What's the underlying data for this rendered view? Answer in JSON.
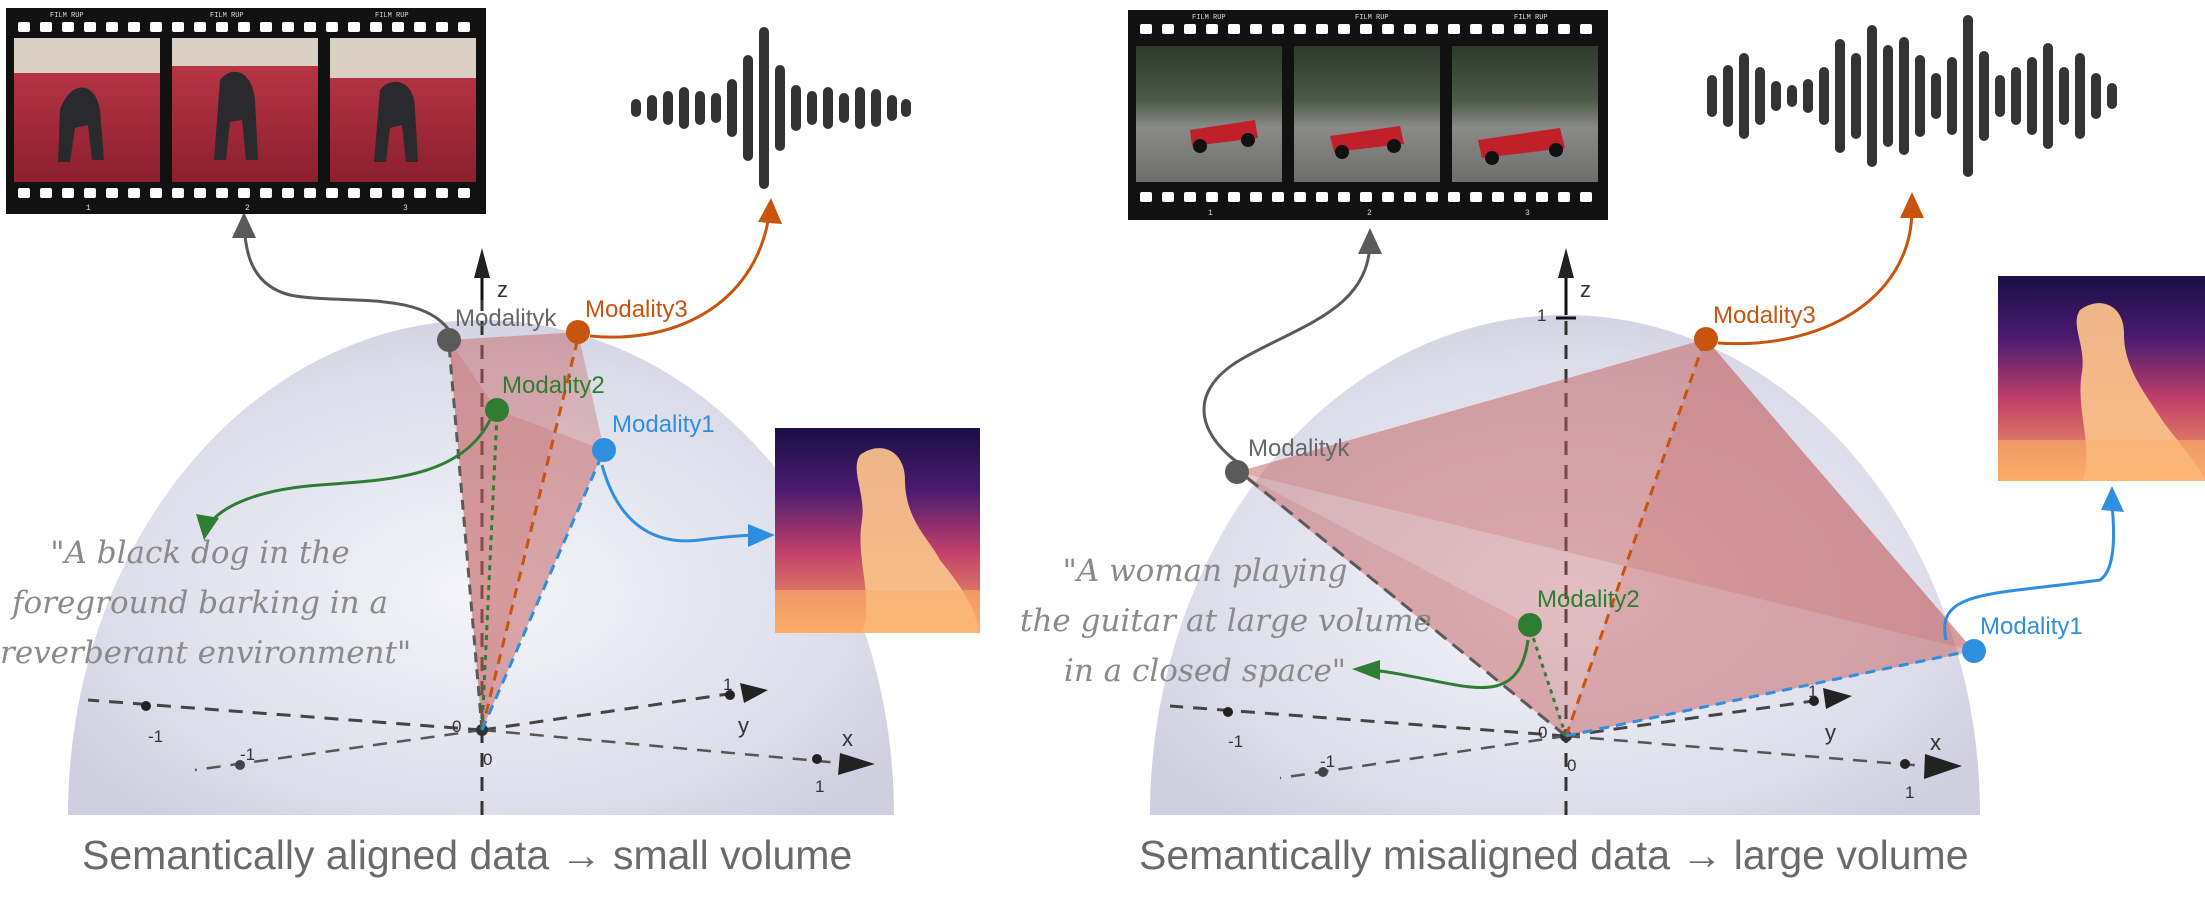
{
  "captions": {
    "left": "Semantically aligned data → small volume",
    "right": "Semantically misaligned data → large volume"
  },
  "panels": {
    "left": {
      "quote_lines": [
        "\"A black dog in the",
        "foreground barking in a",
        "reverberant environment\""
      ],
      "modality_labels": {
        "k": "Modalityk",
        "m1": "Modality1",
        "m2": "Modality2",
        "m3": "Modality3"
      },
      "axes": {
        "z": "z",
        "y": "y",
        "x": "x",
        "origin": "0",
        "neg_one": "-1",
        "one": "1"
      },
      "film_frame_numbers": [
        "1",
        "2",
        "3"
      ],
      "film_brand": "FILM RUP",
      "image_subject": "black dog on red carpet"
    },
    "right": {
      "quote_lines": [
        "\"A woman playing",
        "the guitar at large volume",
        "in a closed space\""
      ],
      "modality_labels": {
        "k": "Modalityk",
        "m1": "Modality1",
        "m2": "Modality2",
        "m3": "Modality3"
      },
      "axes": {
        "z": "z",
        "y": "y",
        "x": "x",
        "origin": "0",
        "neg_one": "-1",
        "one": "1"
      },
      "film_frame_numbers": [
        "1",
        "2",
        "3"
      ],
      "film_brand": "FILM RUP",
      "image_subject": "racing cars on track"
    }
  },
  "colors": {
    "modality_k": "#5a5a5a",
    "modality_1": "#2e8ee0",
    "modality_2": "#2e7d32",
    "modality_3": "#c8540e",
    "volume": "#c97070",
    "sphere": "#d9d9ea"
  },
  "icons": [
    "film-strip-icon",
    "audio-waveform-icon",
    "depth-map-icon"
  ]
}
